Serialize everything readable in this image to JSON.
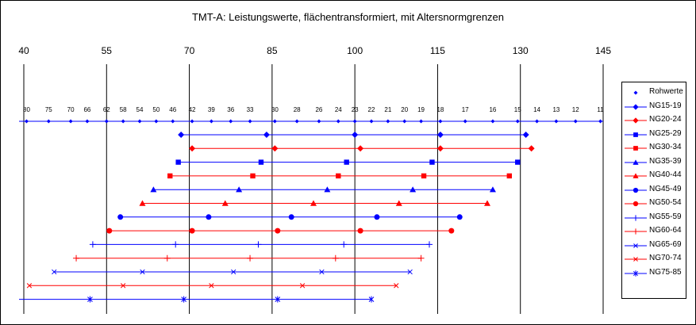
{
  "chart_data": {
    "type": "line",
    "title": "TMT-A: Leistungswerte, flächentransformiert, mit Altersnormgrenzen",
    "x_ticks": [
      40,
      55,
      70,
      85,
      100,
      115,
      130,
      145
    ],
    "xlim": [
      40,
      145
    ],
    "raw_scores": {
      "name": "Rohwerte",
      "values": [
        80,
        75,
        70,
        66,
        62,
        58,
        54,
        50,
        46,
        42,
        39,
        36,
        33,
        30,
        28,
        26,
        24,
        23,
        22,
        21,
        20,
        19,
        18,
        17,
        16,
        15,
        14,
        13,
        12,
        11
      ],
      "x": [
        40.5,
        44.5,
        48.5,
        51.5,
        55,
        58,
        61,
        64,
        67,
        70.5,
        74,
        77.5,
        81,
        85.5,
        89.5,
        93.5,
        97,
        100,
        103,
        106,
        109,
        112,
        115.5,
        120,
        125,
        129.5,
        133,
        136.5,
        140,
        144.5
      ],
      "color": "#0000FF"
    },
    "series": [
      {
        "name": "NG15-19",
        "color": "#0000FF",
        "marker": "diamond",
        "x": [
          68.5,
          84,
          100,
          115.5,
          131
        ]
      },
      {
        "name": "NG20-24",
        "color": "#FF0000",
        "marker": "diamond",
        "x": [
          70.5,
          85.5,
          101,
          115.5,
          132
        ]
      },
      {
        "name": "NG25-29",
        "color": "#0000FF",
        "marker": "square",
        "x": [
          68,
          83,
          98.5,
          114,
          129.5
        ]
      },
      {
        "name": "NG30-34",
        "color": "#FF0000",
        "marker": "square",
        "x": [
          66.5,
          81.5,
          97,
          112.5,
          128
        ]
      },
      {
        "name": "NG35-39",
        "color": "#0000FF",
        "marker": "triangle",
        "x": [
          63.5,
          79,
          95,
          110.5,
          125
        ]
      },
      {
        "name": "NG40-44",
        "color": "#FF0000",
        "marker": "triangle",
        "x": [
          61.5,
          76.5,
          92.5,
          108,
          124
        ]
      },
      {
        "name": "NG45-49",
        "color": "#0000FF",
        "marker": "circle",
        "x": [
          57.5,
          73.5,
          88.5,
          104,
          119
        ]
      },
      {
        "name": "NG50-54",
        "color": "#FF0000",
        "marker": "circle",
        "x": [
          55.5,
          70.5,
          86,
          101,
          117.5
        ]
      },
      {
        "name": "NG55-59",
        "color": "#0000FF",
        "marker": "plus",
        "x": [
          52.5,
          67.5,
          82.5,
          98,
          113.5
        ]
      },
      {
        "name": "NG60-64",
        "color": "#FF0000",
        "marker": "plus",
        "x": [
          49.5,
          66,
          81,
          96.5,
          112
        ]
      },
      {
        "name": "NG65-69",
        "color": "#0000FF",
        "marker": "cross",
        "x": [
          45.5,
          61.5,
          78,
          94,
          110
        ]
      },
      {
        "name": "NG70-74",
        "color": "#FF0000",
        "marker": "cross",
        "x": [
          41,
          58,
          74,
          90.5,
          107.5
        ]
      },
      {
        "name": "NG75-85",
        "color": "#0000FF",
        "marker": "star",
        "x": [
          52,
          69,
          86,
          103
        ]
      }
    ],
    "legend_position": "right",
    "grid": "vertical-major"
  }
}
